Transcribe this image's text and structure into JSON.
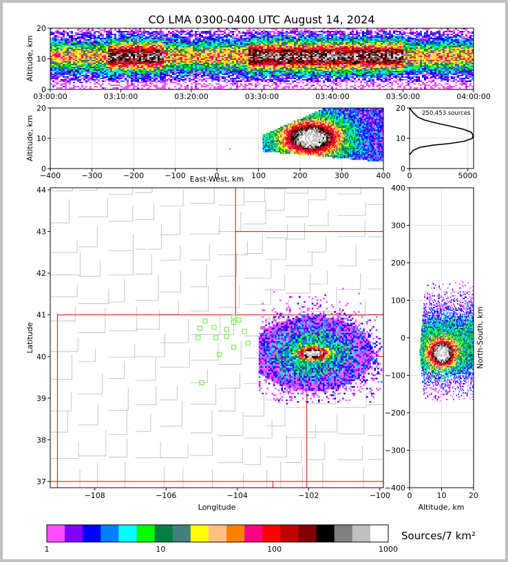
{
  "chart_data": [
    {
      "id": "time_height",
      "type": "heatmap",
      "title": "CO LMA 0300-0400 UTC August 14, 2024",
      "ylabel": "Altitude, km",
      "xlim": [
        "03:00:00",
        "04:00:00"
      ],
      "ylim": [
        0,
        20
      ],
      "x_ticks": [
        "03:00:00",
        "03:10:00",
        "03:20:00",
        "03:30:00",
        "03:40:00",
        "03:50:00",
        "04:00:00"
      ],
      "y_ticks": [
        0,
        10,
        20
      ],
      "intense_intervals": [
        [
          "03:08:00",
          "03:16:00"
        ],
        [
          "03:28:00",
          "03:50:00"
        ]
      ]
    },
    {
      "id": "east_west_altitude",
      "type": "heatmap",
      "xlabel": "East-West, km",
      "ylabel": "Altitude, km",
      "xlim": [
        -400,
        400
      ],
      "ylim": [
        0,
        20
      ],
      "x_ticks": [
        -400,
        -300,
        -200,
        -100,
        0,
        100,
        200,
        300,
        400
      ],
      "y_ticks": [
        0,
        10,
        20
      ],
      "core_center": {
        "x": 225,
        "y": 10
      }
    },
    {
      "id": "altitude_histogram",
      "type": "line",
      "annotation": "250,453 sources",
      "xlim": [
        0,
        5500
      ],
      "ylim": [
        0,
        20
      ],
      "x_ticks": [
        0,
        5000
      ],
      "y_ticks": [
        0,
        10,
        20
      ],
      "x": [
        0,
        300,
        900,
        2000,
        3500,
        4700,
        5400,
        5450,
        5300,
        4600,
        3500,
        2300,
        1300,
        700,
        300,
        0
      ],
      "y": [
        4.5,
        6,
        7,
        7.7,
        8.3,
        9,
        10,
        11,
        12,
        13,
        14,
        15,
        16,
        17,
        18.5,
        20
      ]
    },
    {
      "id": "plan_view",
      "type": "heatmap",
      "xlabel": "Longitude",
      "ylabel": "Latitude",
      "xlim": [
        -109.25,
        -99.9
      ],
      "ylim": [
        36.85,
        44.05
      ],
      "x_ticks": [
        -108,
        -106,
        -104,
        -102,
        -100
      ],
      "y_ticks": [
        37,
        38,
        39,
        40,
        41,
        42,
        43,
        44
      ],
      "core_center": {
        "lon": -101.9,
        "lat": 40.05
      },
      "stations": [
        {
          "lon": -104.9,
          "lat": 40.85
        },
        {
          "lon": -104.65,
          "lat": 40.7
        },
        {
          "lon": -105.05,
          "lat": 40.68
        },
        {
          "lon": -104.3,
          "lat": 40.65
        },
        {
          "lon": -104.1,
          "lat": 40.82
        },
        {
          "lon": -103.95,
          "lat": 40.88
        },
        {
          "lon": -104.1,
          "lat": 40.95
        },
        {
          "lon": -103.8,
          "lat": 40.6
        },
        {
          "lon": -104.6,
          "lat": 40.45
        },
        {
          "lon": -104.3,
          "lat": 40.48
        },
        {
          "lon": -105.1,
          "lat": 40.45
        },
        {
          "lon": -103.7,
          "lat": 40.32
        },
        {
          "lon": -104.1,
          "lat": 40.22
        },
        {
          "lon": -104.5,
          "lat": 40.05
        },
        {
          "lon": -105.0,
          "lat": 39.37
        }
      ]
    },
    {
      "id": "north_south_altitude",
      "type": "heatmap",
      "xlabel": "Altitude, km",
      "ylabel": "North-South, km",
      "xlim": [
        0,
        20
      ],
      "ylim": [
        -400,
        400
      ],
      "x_ticks": [
        0,
        10,
        20
      ],
      "y_ticks": [
        -400,
        -300,
        -200,
        -100,
        0,
        100,
        200,
        300,
        400
      ],
      "core_center": {
        "x": 10,
        "y": -45
      }
    },
    {
      "id": "colorbar",
      "type": "heatmap",
      "label": "Sources/7 km²",
      "scale": "log",
      "range": [
        1,
        1000
      ],
      "tick_labels": [
        "1",
        "10",
        "100",
        "1000"
      ],
      "colors": [
        "#ff50ff",
        "#8000ff",
        "#0000ff",
        "#0080ff",
        "#00ffff",
        "#00ff00",
        "#008040",
        "#408080",
        "#ffff00",
        "#ffc080",
        "#ff8000",
        "#ff0080",
        "#ff0000",
        "#c00000",
        "#800000",
        "#000000",
        "#808080",
        "#c0c0c0",
        "#ffffff"
      ]
    }
  ]
}
